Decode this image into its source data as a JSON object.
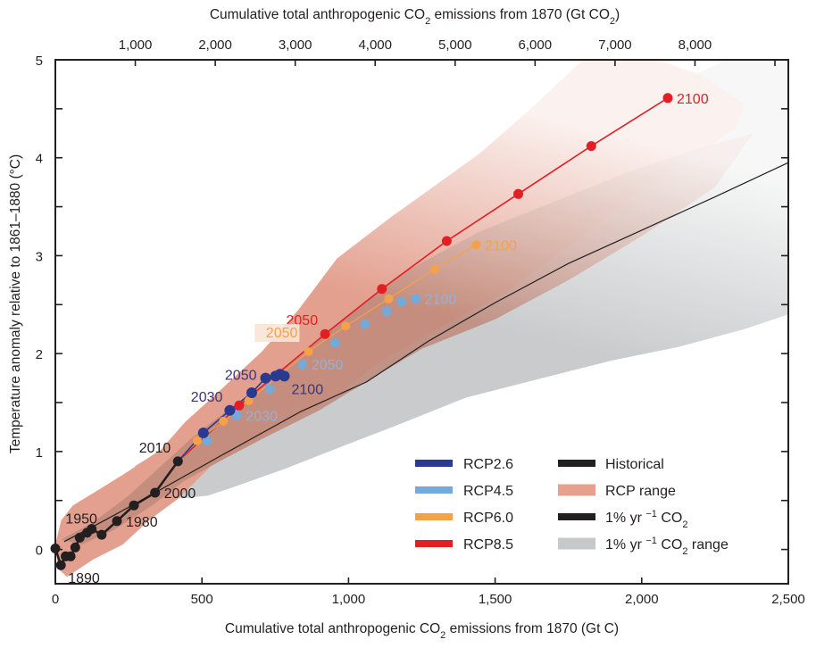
{
  "chart_data": {
    "type": "line",
    "title": "",
    "xlabel": "Cumulative total anthropogenic CO2 emissions from 1870 (Gt C)",
    "xlabel_parts": [
      "Cumulative total anthropogenic CO",
      "2",
      " emissions from 1870 (Gt C)"
    ],
    "x2label": "Cumulative total anthropogenic CO2 emissions from 1870 (Gt CO2)",
    "x2label_parts": [
      "Cumulative total anthropogenic CO",
      "2",
      " emissions from 1870 (Gt CO",
      "2",
      ")"
    ],
    "ylabel": "Temperature anomaly relative to 1861–1880 (°C)",
    "xlim": [
      0,
      2500
    ],
    "ylim": [
      -0.35,
      5
    ],
    "grid": false,
    "x_ticks": [
      0,
      500,
      1000,
      1500,
      2000,
      2500
    ],
    "x_tick_labels": [
      "0",
      "500",
      "1,000",
      "1,500",
      "2,000",
      "2,500"
    ],
    "x_minor_ticks": [],
    "y_ticks": [
      0,
      1,
      2,
      3,
      4,
      5
    ],
    "y_tick_labels": [
      "0",
      "1",
      "2",
      "3",
      "4",
      "5"
    ],
    "y_minor_ticks": [
      0.5,
      1.5,
      2.5,
      3.5,
      4.5
    ],
    "x2_ticks_gtco2": [
      1000,
      2000,
      3000,
      4000,
      5000,
      6000,
      7000,
      8000,
      9000
    ],
    "x2_tick_labels": [
      "1,000",
      "2,000",
      "3,000",
      "4,000",
      "5,000",
      "6,000",
      "7,000",
      "8,000",
      ""
    ],
    "gtco2_per_gtc": 3.667,
    "legend_position": "bottom-right",
    "areas": [
      {
        "name": "1% yr−1 CO2 range",
        "color": "#c9cbcc",
        "polygon": [
          [
            270,
            0.85
          ],
          [
            420,
            1.12
          ],
          [
            560,
            1.42
          ],
          [
            700,
            1.72
          ],
          [
            870,
            2.1
          ],
          [
            1050,
            2.58
          ],
          [
            1250,
            3.05
          ],
          [
            1500,
            3.62
          ],
          [
            1750,
            4.15
          ],
          [
            2000,
            4.6
          ],
          [
            2290,
            5.0
          ],
          [
            2500,
            5.0
          ],
          [
            2500,
            2.4
          ],
          [
            2350,
            2.25
          ],
          [
            2128,
            2.07
          ],
          [
            1900,
            1.93
          ],
          [
            1701,
            1.78
          ],
          [
            1400,
            1.55
          ],
          [
            1150,
            1.25
          ],
          [
            950,
            1.02
          ],
          [
            780,
            0.82
          ],
          [
            620,
            0.65
          ],
          [
            520,
            0.55
          ],
          [
            430,
            0.52
          ],
          [
            340,
            0.62
          ],
          [
            290,
            0.72
          ]
        ]
      },
      {
        "name": "RCP range",
        "color": "#e3a08f",
        "polygon": [
          [
            0,
            0.05
          ],
          [
            20,
            0.3
          ],
          [
            60,
            0.45
          ],
          [
            137,
            0.59
          ],
          [
            250,
            0.8
          ],
          [
            360,
            1.02
          ],
          [
            442,
            1.3
          ],
          [
            560,
            1.62
          ],
          [
            704,
            2.02
          ],
          [
            830,
            2.45
          ],
          [
            960,
            2.97
          ],
          [
            1143,
            3.39
          ],
          [
            1274,
            3.67
          ],
          [
            1450,
            4.05
          ],
          [
            1640,
            4.55
          ],
          [
            1800,
            5.0
          ],
          [
            2050,
            5.0
          ],
          [
            2200,
            4.85
          ],
          [
            2350,
            4.55
          ],
          [
            2320,
            4.3
          ],
          [
            2150,
            3.95
          ],
          [
            1950,
            3.55
          ],
          [
            1750,
            3.1
          ],
          [
            1550,
            2.65
          ],
          [
            1300,
            2.25
          ],
          [
            1100,
            1.9
          ],
          [
            950,
            1.55
          ],
          [
            750,
            1.22
          ],
          [
            530,
            0.85
          ],
          [
            420,
            0.52
          ],
          [
            320,
            0.3
          ],
          [
            230,
            0.05
          ],
          [
            130,
            -0.1
          ],
          [
            40,
            -0.28
          ],
          [
            10,
            -0.2
          ]
        ]
      },
      {
        "name": "RCP overlap (darker core)",
        "color": "#c08a7a",
        "polygon": [
          [
            20,
            0.1
          ],
          [
            130,
            0.28
          ],
          [
            250,
            0.55
          ],
          [
            360,
            0.85
          ],
          [
            470,
            1.15
          ],
          [
            600,
            1.45
          ],
          [
            760,
            1.8
          ],
          [
            880,
            2.1
          ],
          [
            1000,
            2.4
          ],
          [
            1200,
            2.85
          ],
          [
            1450,
            3.25
          ],
          [
            1700,
            3.55
          ],
          [
            1950,
            3.85
          ],
          [
            2200,
            4.1
          ],
          [
            2380,
            4.25
          ],
          [
            2250,
            3.7
          ],
          [
            2000,
            3.2
          ],
          [
            1750,
            2.75
          ],
          [
            1500,
            2.35
          ],
          [
            1250,
            2.05
          ],
          [
            1080,
            1.75
          ],
          [
            900,
            1.42
          ],
          [
            720,
            1.15
          ],
          [
            560,
            0.9
          ],
          [
            440,
            0.7
          ],
          [
            330,
            0.45
          ],
          [
            200,
            0.2
          ],
          [
            90,
            0.05
          ]
        ]
      }
    ],
    "series": [
      {
        "name": "1% yr−1 CO2",
        "kind": "line",
        "color": "#231f20",
        "width": "thin",
        "points": [
          [
            30,
            0.08
          ],
          [
            170,
            0.3
          ],
          [
            340,
            0.58
          ],
          [
            560,
            0.95
          ],
          [
            838,
            1.41
          ],
          [
            1061,
            1.71
          ],
          [
            1274,
            2.13
          ],
          [
            1500,
            2.52
          ],
          [
            1750,
            2.92
          ],
          [
            2000,
            3.26
          ],
          [
            2250,
            3.6
          ],
          [
            2500,
            3.95
          ]
        ]
      },
      {
        "name": "Historical",
        "kind": "line+markers",
        "color": "#231f20",
        "width": "thick",
        "points": [
          [
            0,
            0.01
          ],
          [
            19,
            -0.16
          ],
          [
            35,
            -0.07
          ],
          [
            52,
            -0.07
          ],
          [
            68,
            0.02
          ],
          [
            83,
            0.12
          ],
          [
            108,
            0.17
          ],
          [
            124,
            0.21
          ],
          [
            158,
            0.15
          ],
          [
            210,
            0.29
          ],
          [
            268,
            0.45
          ],
          [
            340,
            0.58
          ],
          [
            418,
            0.9
          ]
        ],
        "labels": [
          {
            "text": "1890",
            "point": 1,
            "anchor": "right-below"
          },
          {
            "text": "1950",
            "point": 5,
            "anchor": "above"
          },
          {
            "text": "1980",
            "point": 9,
            "anchor": "right"
          },
          {
            "text": "2000",
            "point": 11,
            "anchor": "right"
          },
          {
            "text": "2010",
            "point": 12,
            "anchor": "left-above"
          }
        ]
      },
      {
        "name": "RCP8.5",
        "kind": "line+markers",
        "color": "#e31f26",
        "width": "medium",
        "points": [
          [
            418,
            0.9
          ],
          [
            627,
            1.47
          ],
          [
            920,
            2.2
          ],
          [
            1114,
            2.66
          ],
          [
            1335,
            3.15
          ],
          [
            1579,
            3.63
          ],
          [
            1828,
            4.12
          ],
          [
            2089,
            4.61
          ]
        ],
        "labels": [
          {
            "text": "2050",
            "point": 2,
            "anchor": "left-above"
          },
          {
            "text": "2100",
            "point": 7,
            "anchor": "right"
          }
        ]
      },
      {
        "name": "RCP6.0",
        "kind": "line+markers",
        "color": "#f4a14a",
        "width": "thin",
        "points": [
          [
            418,
            0.9
          ],
          [
            484,
            1.11
          ],
          [
            573,
            1.31
          ],
          [
            660,
            1.52
          ],
          [
            863,
            2.02
          ],
          [
            990,
            2.28
          ],
          [
            1137,
            2.56
          ],
          [
            1293,
            2.86
          ],
          [
            1435,
            3.11
          ]
        ],
        "labels": [
          {
            "text": "2050",
            "point": 4,
            "anchor": "left-above-boxed"
          },
          {
            "text": "2100",
            "point": 8,
            "anchor": "right"
          }
        ]
      },
      {
        "name": "RCP4.5",
        "kind": "markers",
        "color": "#74a9d8",
        "width": "thin",
        "points": [
          [
            517,
            1.11
          ],
          [
            619,
            1.37
          ],
          [
            731,
            1.64
          ],
          [
            843,
            1.89
          ],
          [
            954,
            2.11
          ],
          [
            1056,
            2.3
          ],
          [
            1130,
            2.43
          ],
          [
            1181,
            2.53
          ],
          [
            1229,
            2.56
          ]
        ],
        "labels": [
          {
            "text": "2030",
            "point": 1,
            "anchor": "right"
          },
          {
            "text": "2050",
            "point": 3,
            "anchor": "right"
          },
          {
            "text": "2100",
            "point": 8,
            "anchor": "right"
          }
        ]
      },
      {
        "name": "RCP2.6",
        "kind": "line+markers",
        "color": "#2b3990",
        "width": "medium",
        "points": [
          [
            418,
            0.9
          ],
          [
            505,
            1.19
          ],
          [
            595,
            1.42
          ],
          [
            670,
            1.6
          ],
          [
            717,
            1.75
          ],
          [
            751,
            1.77
          ],
          [
            766,
            1.79
          ],
          [
            781,
            1.77
          ]
        ],
        "labels": [
          {
            "text": "2030",
            "point": 2,
            "anchor": "left-above"
          },
          {
            "text": "2050",
            "point": 4,
            "anchor": "left"
          },
          {
            "text": "2100",
            "point": 7,
            "anchor": "right-below"
          }
        ]
      }
    ],
    "legend": {
      "column1": [
        {
          "label": "RCP2.6",
          "color": "#2b3990",
          "type": "line"
        },
        {
          "label": "RCP4.5",
          "color": "#74a9d8",
          "type": "line"
        },
        {
          "label": "RCP6.0",
          "color": "#f4a14a",
          "type": "line"
        },
        {
          "label": "RCP8.5",
          "color": "#e31f26",
          "type": "line"
        }
      ],
      "column2": [
        {
          "label": "Historical",
          "label_parts": [
            "Historical"
          ],
          "color": "#231f20",
          "type": "line"
        },
        {
          "label": "RCP range",
          "label_parts": [
            "RCP range"
          ],
          "color": "#e8a08e",
          "type": "patch"
        },
        {
          "label": "1% yr−1 CO2",
          "label_parts": [
            "1% yr ",
            "−1",
            " CO",
            "2",
            ""
          ],
          "color": "#231f20",
          "type": "line"
        },
        {
          "label": "1% yr−1 CO2 range",
          "label_parts": [
            "1% yr ",
            "−1",
            " CO",
            "2",
            " range"
          ],
          "color": "#c6c8ca",
          "type": "patch"
        }
      ]
    }
  }
}
